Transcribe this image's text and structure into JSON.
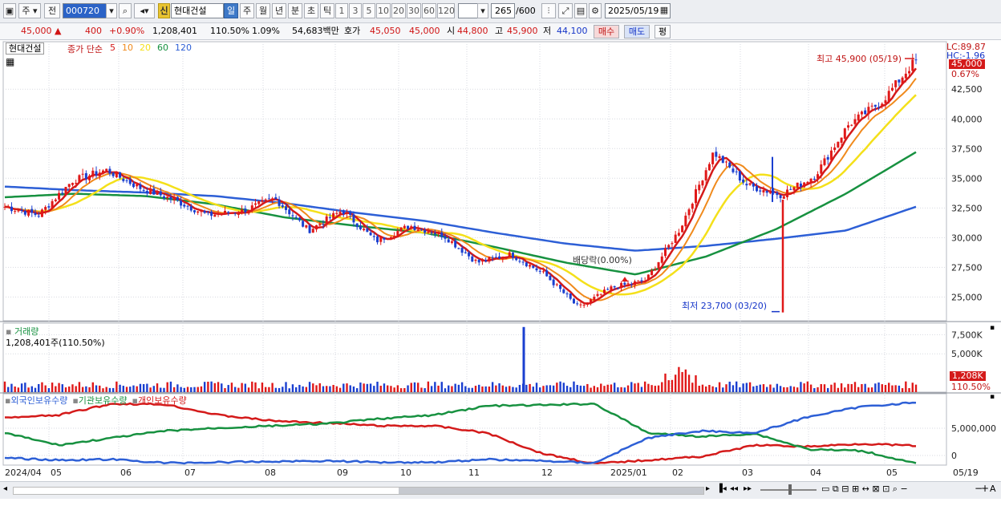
{
  "toolbar": {
    "period_label": "주",
    "prev_label": "전",
    "code_value": "000720",
    "stock_badge": "신",
    "stock_name": "현대건설",
    "timeframes": [
      "일",
      "주",
      "월",
      "년",
      "분",
      "초",
      "틱"
    ],
    "active_timeframe": "일",
    "intervals": [
      "1",
      "3",
      "5",
      "10",
      "20",
      "30",
      "60",
      "120"
    ],
    "count_value": "265",
    "count_total": "/600",
    "date_value": "2025/05/19"
  },
  "quote": {
    "price": "45,000",
    "change": "400",
    "change_pct": "+0.90%",
    "volume": "1,208,401",
    "volume_ratio": "110.50%",
    "turnover": "1.09%",
    "amount": "54,683백만",
    "ask_label": "호가",
    "ask1": "45,050",
    "ask2": "45,000",
    "open_label": "시",
    "open": "44,800",
    "high_label": "고",
    "high": "45,900",
    "low_label": "저",
    "low": "44,100",
    "buy_label": "매수",
    "sell_label": "매도",
    "eval_label": "평"
  },
  "price_panel": {
    "name_box": "현대건설",
    "ma_title": "종가 단순",
    "ma_periods": [
      "5",
      "10",
      "20",
      "60",
      "120"
    ],
    "ma_colors": [
      "#d41a1a",
      "#f08a1c",
      "#f4e01a",
      "#179140",
      "#2d5fd6"
    ],
    "lc_text": "LC:89.87",
    "hc_text": "HC:-1.96",
    "current_tag": "45,000",
    "pct_tag": "0.67%",
    "max_note": "최고 45,900 (05/19)",
    "min_note": "최저 23,700 (03/20)",
    "dividend_note": "배당락(0.00%)"
  },
  "volume_panel": {
    "title": "거래량",
    "value_text": "1,208,401주(110.50%)",
    "tag_value": "1,208K",
    "tag_pct": "110.50%"
  },
  "holding_panel": {
    "items": [
      "외국인보유수량",
      "기관보유수량",
      "개인보유수량"
    ],
    "colors": [
      "#2d5fd6",
      "#179140",
      "#d41a1a"
    ]
  },
  "time_axis": {
    "labels": [
      "2024/04",
      "05",
      "06",
      "07",
      "08",
      "09",
      "10",
      "11",
      "12",
      "2025/01",
      "02",
      "03",
      "04",
      "05"
    ],
    "right_label": "05/19"
  },
  "chart_data": [
    {
      "type": "candlestick",
      "title": "현대건설",
      "x_range": [
        "2024/04",
        "2025/05/19"
      ],
      "ylim": [
        23000,
        46500
      ],
      "y_ticks": [
        25000,
        27500,
        30000,
        32500,
        35000,
        37500,
        40000,
        42500
      ],
      "y_tick_labels": [
        "25,000",
        "27,500",
        "30,000",
        "32,500",
        "35,000",
        "37,500",
        "40,000",
        "42,500"
      ],
      "close_path": [
        [
          "2024/04",
          32600
        ],
        [
          "2024/04b",
          31900
        ],
        [
          "2024/05",
          34800
        ],
        [
          "2024/05b",
          35700
        ],
        [
          "2024/06",
          34200
        ],
        [
          "2024/06b",
          33200
        ],
        [
          "2024/07",
          31900
        ],
        [
          "2024/07b",
          32200
        ],
        [
          "2024/08",
          33300
        ],
        [
          "2024/08b",
          30600
        ],
        [
          "2024/09",
          32300
        ],
        [
          "2024/09b",
          29700
        ],
        [
          "2024/10",
          31000
        ],
        [
          "2024/10b",
          30200
        ],
        [
          "2024/11",
          27900
        ],
        [
          "2024/11b",
          28600
        ],
        [
          "2024/12",
          26900
        ],
        [
          "2024/12b",
          24100
        ],
        [
          "2025/01",
          25800
        ],
        [
          "2025/01b",
          26400
        ],
        [
          "2025/02",
          30700
        ],
        [
          "2025/02b",
          37200
        ],
        [
          "2025/03",
          34400
        ],
        [
          "2025/03b",
          33600
        ],
        [
          "2025/04",
          35200
        ],
        [
          "2025/04b",
          39500
        ],
        [
          "2025/05",
          41500
        ],
        [
          "2025/05/19",
          45000
        ]
      ],
      "moving_averages": {
        "5": "close",
        "10": "close",
        "20": "close",
        "60": [
          33400,
          33700,
          33500,
          32800,
          31700,
          31000,
          30400,
          29200,
          27900,
          26900,
          28400,
          30700,
          33700,
          37200
        ],
        "120": [
          34300,
          34000,
          33800,
          33500,
          32900,
          32100,
          31400,
          30400,
          29500,
          28900,
          29300,
          29900,
          30600,
          32600
        ]
      },
      "annotations": [
        {
          "text": "최고 45,900 (05/19)",
          "value": 45900
        },
        {
          "text": "최저 23,700 (03/20)",
          "value": 23700
        },
        {
          "text": "배당락(0.00%)",
          "date": "2024/12"
        }
      ]
    },
    {
      "type": "bar",
      "title": "거래량",
      "ylim": [
        0,
        9000000
      ],
      "y_ticks": [
        5000000,
        7500000
      ],
      "y_tick_labels": [
        "5,000K",
        "7,500K"
      ],
      "spike_date": "2024/11",
      "spike_value": 8500000,
      "latest": 1208401
    },
    {
      "type": "line",
      "title": "보유수량",
      "y_ticks": [
        0,
        5000000
      ],
      "y_tick_labels": [
        "0",
        "5,000,000"
      ],
      "series": [
        {
          "name": "외국인보유수량",
          "color": "#2d5fd6"
        },
        {
          "name": "기관보유수량",
          "color": "#179140"
        },
        {
          "name": "개인보유수량",
          "color": "#d41a1a"
        }
      ]
    }
  ]
}
